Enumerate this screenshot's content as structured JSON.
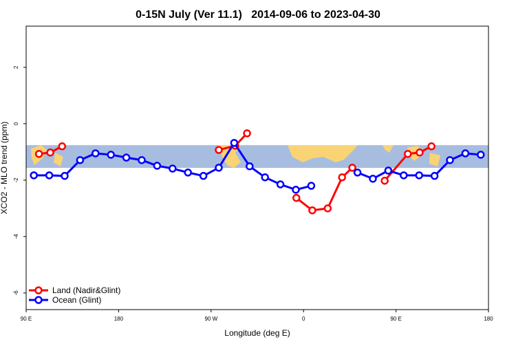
{
  "chart_data": {
    "type": "line",
    "title": "0-15N July (Ver 11.1)   2014-09-06 to 2023-04-30",
    "x_label": "Longitude (deg E)",
    "y_label": "XCO2 - MLO trend (ppm)",
    "xlim": [
      90,
      540
    ],
    "ylim": [
      -6.59,
      3.46
    ],
    "xticks": [
      {
        "value": 90,
        "label": "90 E"
      },
      180,
      {
        "value": 270,
        "label": "90 W"
      },
      {
        "value": 360,
        "label": "0"
      },
      {
        "value": 450,
        "label": "90 E"
      },
      {
        "value": 540,
        "label": "180"
      }
    ],
    "yticks": [
      -6,
      -4,
      -2,
      0,
      2
    ],
    "legend": "bottom-left",
    "series": [
      {
        "name": "Land (Nadir&Glint)",
        "color": "#ff0000",
        "x": [
          102.5,
          113.5,
          125,
          null,
          277.5,
          293.5,
          305,
          null,
          353,
          368.5,
          383.5,
          397.5,
          407.5,
          null,
          439,
          461.5,
          473,
          484.5
        ],
        "values": [
          -1.07,
          -1.02,
          -0.8,
          null,
          -0.93,
          -0.78,
          -0.34,
          null,
          -2.63,
          -3.07,
          -3.0,
          -1.9,
          -1.56,
          null,
          -2.02,
          -1.07,
          -1.02,
          -0.8
        ]
      },
      {
        "name": "Ocean (Glint)",
        "color": "#0000ff",
        "x": [
          97.5,
          112.5,
          127.5,
          142.5,
          157.5,
          172.5,
          187.5,
          202.5,
          217.5,
          232.5,
          247.5,
          262.5,
          277.5,
          292.5,
          307.5,
          322.5,
          337.5,
          352.5,
          367.5,
          null,
          412.5,
          427.5,
          442.5,
          457.5,
          472.5,
          487.5,
          502.5,
          517.5,
          532.5
        ],
        "values": [
          -1.83,
          -1.83,
          -1.85,
          -1.29,
          -1.05,
          -1.1,
          -1.2,
          -1.29,
          -1.49,
          -1.59,
          -1.73,
          -1.85,
          -1.56,
          -0.68,
          -1.51,
          -1.9,
          -2.15,
          -2.34,
          -2.2,
          null,
          -1.73,
          -1.95,
          -1.66,
          -1.83,
          -1.83,
          -1.85,
          -1.29,
          -1.05,
          -1.1
        ]
      }
    ]
  }
}
